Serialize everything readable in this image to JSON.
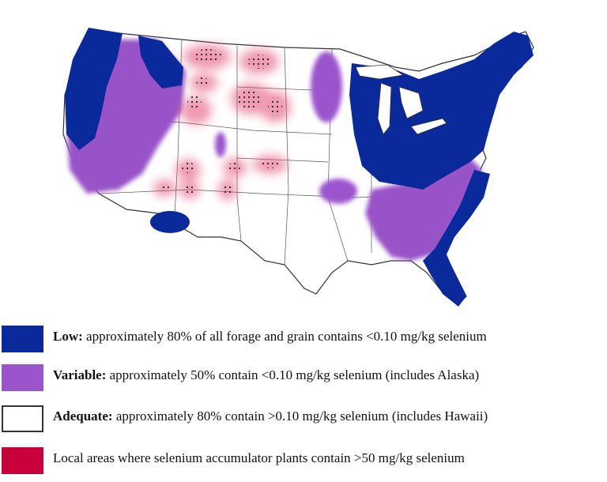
{
  "colors": {
    "low": "#0a2a9c",
    "variable": "#9b55cc",
    "adequate": "#ffffff",
    "accumulator": "#c8003c",
    "outline": "#333333"
  },
  "legend": [
    {
      "key": "low",
      "bold": "Low:",
      "text": " approximately 80% of all forage and grain contains <0.10 mg/kg selenium"
    },
    {
      "key": "variable",
      "bold": "Variable:",
      "text": " approximately 50% contain <0.10 mg/kg selenium (includes Alaska)"
    },
    {
      "key": "adequate",
      "bold": "Adequate:",
      "text": " approximately 80% contain >0.10 mg/kg selenium (includes Hawaii)"
    },
    {
      "key": "accumulator",
      "bold": "",
      "text": "Local areas where selenium accumulator plants contain >50 mg/kg selenium"
    }
  ]
}
